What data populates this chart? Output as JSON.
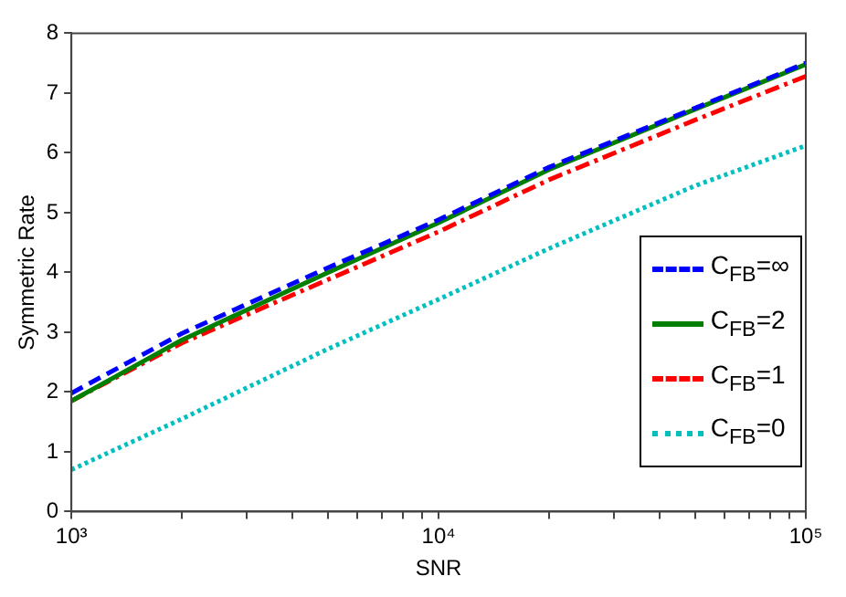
{
  "chart_data": {
    "type": "line",
    "xlabel": "SNR",
    "ylabel": "Symmetric Rate",
    "log": "x",
    "grid": false,
    "legend": "bottom right",
    "marker": "none",
    "x": [
      1000,
      2000,
      5000,
      10000,
      20000,
      50000,
      100000
    ],
    "xlim": [
      1000,
      100000
    ],
    "xticks": [
      {
        "value": 1000,
        "label": "10³"
      },
      {
        "value": 2000,
        "label": null
      },
      {
        "value": 3000,
        "label": null
      },
      {
        "value": 4000,
        "label": null
      },
      {
        "value": 5000,
        "label": null
      },
      {
        "value": 6000,
        "label": null
      },
      {
        "value": 7000,
        "label": null
      },
      {
        "value": 8000,
        "label": null
      },
      {
        "value": 9000,
        "label": null
      },
      {
        "value": 10000,
        "label": "10⁴"
      },
      {
        "value": 20000,
        "label": null
      },
      {
        "value": 30000,
        "label": null
      },
      {
        "value": 40000,
        "label": null
      },
      {
        "value": 50000,
        "label": null
      },
      {
        "value": 60000,
        "label": null
      },
      {
        "value": 70000,
        "label": null
      },
      {
        "value": 80000,
        "label": null
      },
      {
        "value": 90000,
        "label": null
      },
      {
        "value": 100000,
        "label": "10⁵"
      }
    ],
    "ylim": [
      0,
      8
    ],
    "yticks": [
      0,
      1,
      2,
      3,
      4,
      5,
      6,
      7,
      8
    ],
    "series": [
      {
        "name": "C$_{FB}$=∞",
        "color": "#0000ff",
        "line_style": "dashed",
        "values": [
          1.98,
          2.98,
          4.08,
          4.88,
          5.76,
          6.75,
          7.5
        ]
      },
      {
        "name": "C$_{FB}$=2",
        "color": "#007f00",
        "line_style": "solid",
        "values": [
          1.85,
          2.87,
          4.0,
          4.83,
          5.72,
          6.73,
          7.48
        ]
      },
      {
        "name": "C$_{FB}$=1",
        "color": "#ff0000",
        "line_style": "dashdot",
        "values": [
          1.85,
          2.82,
          3.88,
          4.68,
          5.55,
          6.55,
          7.28
        ]
      },
      {
        "name": "C$_{FB}$=0",
        "color": "#00bfbf",
        "line_style": "dotted",
        "values": [
          0.7,
          1.55,
          2.72,
          3.55,
          4.4,
          5.45,
          6.12
        ]
      }
    ]
  }
}
